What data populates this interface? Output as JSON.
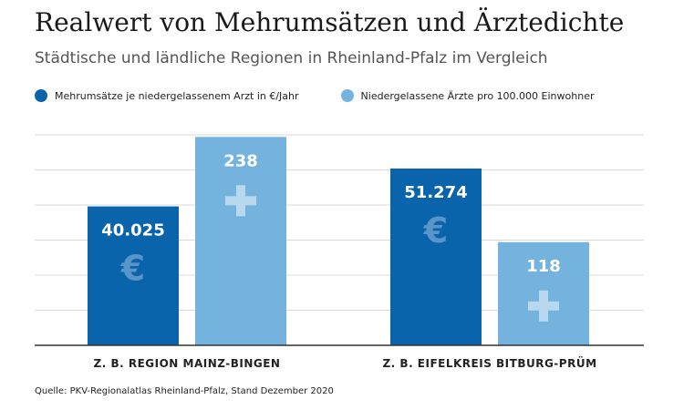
{
  "header": {
    "title": "Realwert von Mehrumsätzen und Ärztedichte",
    "subtitle": "Städtische und ländliche Regionen in Rheinland-Pfalz im Vergleich"
  },
  "legend": [
    {
      "label": "Mehrumsätze je niedergelassenem Arzt in €/Jahr",
      "color": "#0a64ac"
    },
    {
      "label": "Niedergelassene Ärzte pro 100.000 Einwohner",
      "color": "#74b3de"
    }
  ],
  "chart_data": {
    "type": "bar",
    "categories": [
      "Z. B. REGION MAINZ-BINGEN",
      "Z. B. EIFELKREIS BITBURG-PRÜM"
    ],
    "series": [
      {
        "name": "Mehrumsätze je niedergelassenem Arzt in €/Jahr",
        "values": [
          40025,
          51274
        ],
        "labels": [
          "40.025",
          "51.274"
        ],
        "color": "#0a64ac",
        "icon": "euro-icon"
      },
      {
        "name": "Niedergelassene Ärzte pro 100.000 Einwohner",
        "values": [
          238,
          118
        ],
        "labels": [
          "238",
          "118"
        ],
        "color": "#74b3de",
        "icon": "plus-cross-icon"
      }
    ],
    "relative_heights": [
      [
        0.66,
        0.84
      ],
      [
        0.99,
        0.49
      ]
    ],
    "grid": true,
    "legend_position": "top-left"
  },
  "source": "Quelle: PKV-Regionalatlas Rheinland-Pfalz, Stand Dezember 2020"
}
